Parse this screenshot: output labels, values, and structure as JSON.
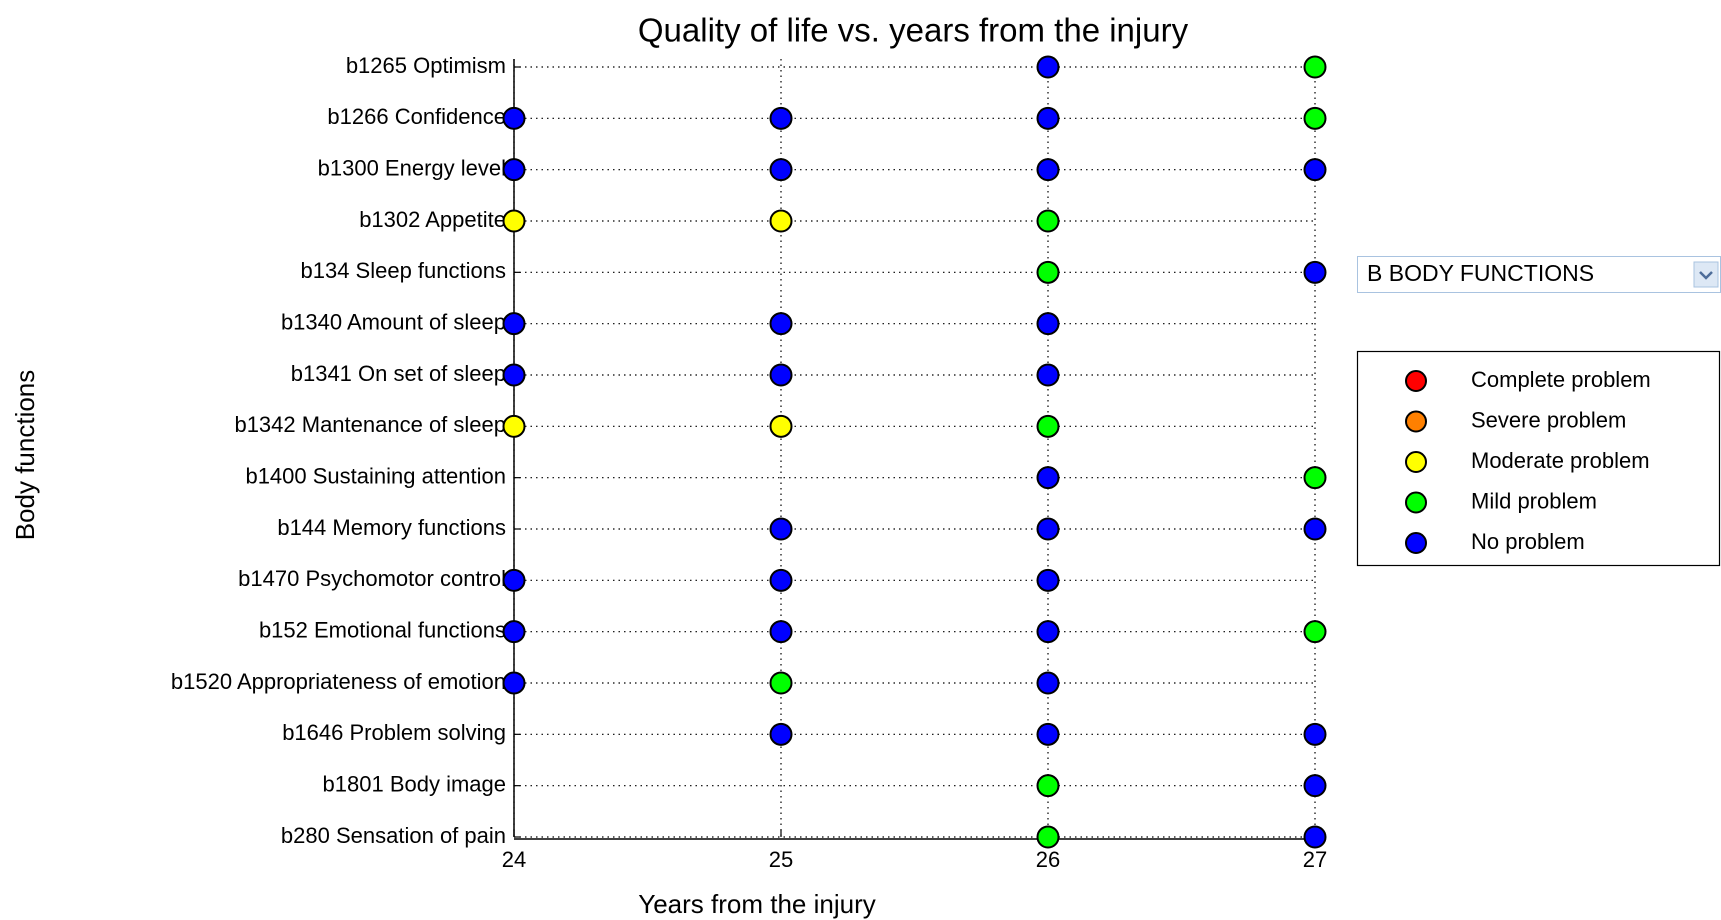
{
  "chart_data": {
    "type": "scatter",
    "title": "Quality of life vs. years from the injury",
    "xlabel": "Years from the injury",
    "ylabel": "Body functions",
    "categories": [
      "b1265 Optimism",
      "b1266 Confidence",
      "b1300 Energy level",
      "b1302 Appetite",
      "b134 Sleep functions",
      "b1340 Amount of sleep",
      "b1341 On set of sleep",
      "b1342 Mantenance of sleep",
      "b1400 Sustaining attention",
      "b144 Memory functions",
      "b1470 Psychomotor control",
      "b152 Emotional functions",
      "b1520 Appropriateness of emotion",
      "b1646 Problem solving",
      "b1801 Body image",
      "b280 Sensation of pain"
    ],
    "xlim": [
      24,
      27
    ],
    "xticks": [
      24,
      25,
      26,
      27
    ],
    "grid": true,
    "series": [
      {
        "name": "Complete problem",
        "color": "#ff0000",
        "x": [],
        "y": []
      },
      {
        "name": "Severe problem",
        "color": "#ff8000",
        "x": [],
        "y": []
      },
      {
        "name": "Moderate problem",
        "color": "#ffff00",
        "x": [
          24,
          25,
          24,
          25
        ],
        "y": [
          "b1302 Appetite",
          "b1302 Appetite",
          "b1342 Mantenance of sleep",
          "b1342 Mantenance of sleep"
        ]
      },
      {
        "name": "Mild problem",
        "color": "#00ff00",
        "x": [
          27,
          27,
          26,
          26,
          26,
          27,
          27,
          25,
          26,
          26
        ],
        "y": [
          "b1265 Optimism",
          "b1266 Confidence",
          "b1302 Appetite",
          "b134 Sleep functions",
          "b1342 Mantenance of sleep",
          "b1400 Sustaining attention",
          "b152 Emotional functions",
          "b1520 Appropriateness of emotion",
          "b1801 Body image",
          "b280 Sensation of pain"
        ]
      },
      {
        "name": "No problem",
        "color": "#0000ff",
        "x": [
          26,
          24,
          25,
          26,
          24,
          25,
          26,
          27,
          27,
          24,
          25,
          26,
          24,
          25,
          26,
          26,
          25,
          26,
          27,
          24,
          25,
          26,
          24,
          25,
          26,
          24,
          26,
          25,
          26,
          27,
          27,
          27
        ],
        "y": [
          "b1265 Optimism",
          "b1266 Confidence",
          "b1266 Confidence",
          "b1266 Confidence",
          "b1300 Energy level",
          "b1300 Energy level",
          "b1300 Energy level",
          "b1300 Energy level",
          "b134 Sleep functions",
          "b1340 Amount of sleep",
          "b1340 Amount of sleep",
          "b1340 Amount of sleep",
          "b1341 On set of sleep",
          "b1341 On set of sleep",
          "b1341 On set of sleep",
          "b1400 Sustaining attention",
          "b144 Memory functions",
          "b144 Memory functions",
          "b144 Memory functions",
          "b1470 Psychomotor control",
          "b1470 Psychomotor control",
          "b1470 Psychomotor control",
          "b152 Emotional functions",
          "b152 Emotional functions",
          "b152 Emotional functions",
          "b1520 Appropriateness of emotion",
          "b1520 Appropriateness of emotion",
          "b1646 Problem solving",
          "b1646 Problem solving",
          "b1646 Problem solving",
          "b1801 Body image",
          "b280 Sensation of pain"
        ]
      }
    ],
    "dropdown": "B BODY FUNCTIONS"
  }
}
